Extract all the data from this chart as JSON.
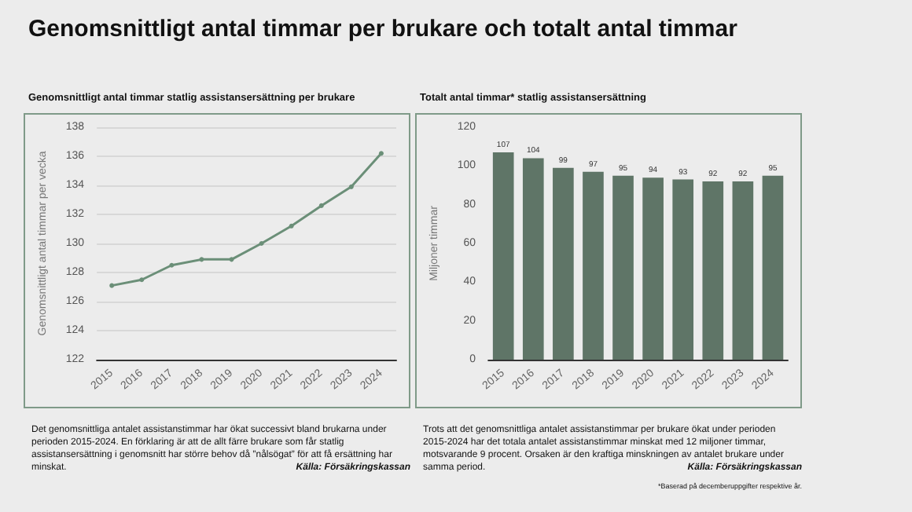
{
  "chart_data": [
    {
      "type": "line",
      "title": "Genomsnittligt antal timmar per brukare och totalt antal timmar",
      "subtitle": "Genomsnittligt antal timmar statlig assistansersättning per brukare",
      "ylabel": "Genomsnittligt antal timmar per vecka",
      "categories": [
        "2015",
        "2016",
        "2017",
        "2018",
        "2019",
        "2020",
        "2021",
        "2022",
        "2023",
        "2024"
      ],
      "series": [
        {
          "color": "#6b8f78",
          "values": [
            127.1,
            127.5,
            128.5,
            128.9,
            128.9,
            130.0,
            131.2,
            132.6,
            133.9,
            136.2
          ]
        }
      ],
      "ylim": [
        122,
        138
      ],
      "yticks": [
        122,
        124,
        126,
        128,
        130,
        132,
        134,
        136,
        138
      ],
      "grid": "y",
      "marker": "circle",
      "line_style": "solid",
      "annotations": [
        "Det genomsnittliga antalet assistanstimmar har ökat  successivt bland brukarna under perioden 2015-2024. En förklaring är att de allt färre brukare som får statlig assistansersättning i genomsnitt har större behov då ”nålsögat” för att få ersättning har minskat.",
        "Källa: Försäkringskassan"
      ]
    },
    {
      "type": "bar",
      "title": "Totalt antal timmar* statlig assistansersättning",
      "ylabel": "Miljoner timmar",
      "categories": [
        "2015",
        "2016",
        "2017",
        "2018",
        "2019",
        "2020",
        "2021",
        "2022",
        "2023",
        "2024"
      ],
      "series": [
        {
          "color": "#5f7567",
          "values": [
            107,
            104,
            99,
            97,
            95,
            94,
            93,
            92,
            92,
            95
          ]
        }
      ],
      "ylim": [
        0,
        120
      ],
      "yticks": [
        0,
        20,
        40,
        60,
        80,
        100,
        120
      ],
      "grid": false,
      "data_labels": true,
      "annotations": [
        "Trots att det genomsnittliga antalet assistanstimmar per brukare ökat under perioden 2015-2024 har det totala antalet assistanstimmar minskat med 12 miljoner timmar, motsvarande 9 procent. Orsaken är den kraftiga minskningen av antalet brukare under samma period.",
        "Källa: Försäkringskassan",
        "*Baserad på decemberuppgifter respektive år."
      ]
    }
  ]
}
